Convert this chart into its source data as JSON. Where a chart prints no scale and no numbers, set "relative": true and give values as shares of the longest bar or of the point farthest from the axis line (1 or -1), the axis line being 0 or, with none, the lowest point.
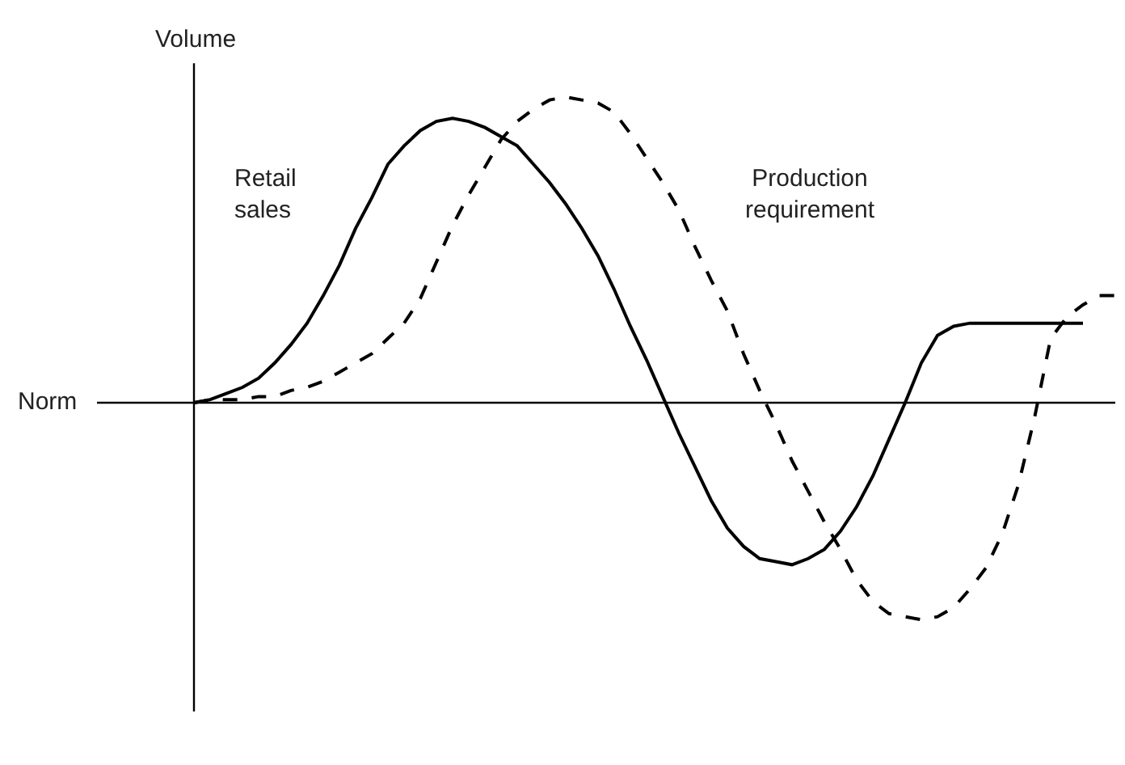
{
  "chart_data": {
    "type": "line",
    "relative": true,
    "ylabel": "Volume",
    "legend": false,
    "marker": "none",
    "categories": [
      null,
      null,
      null,
      null,
      null,
      null,
      null,
      null,
      null,
      null,
      null,
      null,
      null,
      null,
      null,
      null,
      null,
      null,
      null,
      null,
      null,
      null,
      null,
      null,
      null,
      null,
      null,
      null,
      null,
      null,
      null,
      null,
      null,
      null,
      null,
      null,
      null,
      null,
      null,
      null,
      null,
      null,
      null,
      null,
      null,
      null,
      null,
      null,
      null,
      null,
      null,
      null,
      null,
      null,
      null,
      null,
      null,
      null
    ],
    "ref_lines": [
      {
        "axis": "y",
        "value": 0,
        "label": "Norm"
      }
    ],
    "series": [
      {
        "name": "Retail sales",
        "color": "#000000",
        "line_style": "solid",
        "values": [
          0,
          0.01,
          0.03,
          0.05,
          0.08,
          0.13,
          0.19,
          0.26,
          0.35,
          0.45,
          0.57,
          0.67,
          0.78,
          0.84,
          0.89,
          0.92,
          0.93,
          0.92,
          0.9,
          0.87,
          0.84,
          0.78,
          0.72,
          0.65,
          0.57,
          0.48,
          0.37,
          0.25,
          0.14,
          0.02,
          -0.1,
          -0.21,
          -0.32,
          -0.41,
          -0.47,
          -0.51,
          -0.52,
          -0.53,
          -0.51,
          -0.48,
          -0.42,
          -0.34,
          -0.24,
          -0.12,
          0,
          0.13,
          0.22,
          0.25,
          0.26,
          0.26,
          0.26,
          0.26,
          0.26,
          0.26,
          0.26,
          0.26,
          null,
          null
        ]
      },
      {
        "name": "Production requirement",
        "color": "#000000",
        "line_style": "dashed",
        "values": [
          0,
          0.01,
          0.01,
          0.01,
          0.02,
          0.02,
          0.04,
          0.05,
          0.07,
          0.1,
          0.13,
          0.16,
          0.21,
          0.26,
          0.34,
          0.46,
          0.58,
          0.68,
          0.77,
          0.86,
          0.92,
          0.96,
          0.99,
          1,
          0.99,
          0.98,
          0.95,
          0.88,
          0.8,
          0.72,
          0.63,
          0.51,
          0.4,
          0.3,
          0.16,
          0.04,
          -0.07,
          -0.19,
          -0.29,
          -0.39,
          -0.48,
          -0.58,
          -0.65,
          -0.69,
          -0.7,
          -0.71,
          -0.7,
          -0.67,
          -0.61,
          -0.54,
          -0.43,
          -0.27,
          -0.05,
          0.21,
          0.28,
          0.32,
          0.35,
          0.35
        ]
      }
    ]
  }
}
